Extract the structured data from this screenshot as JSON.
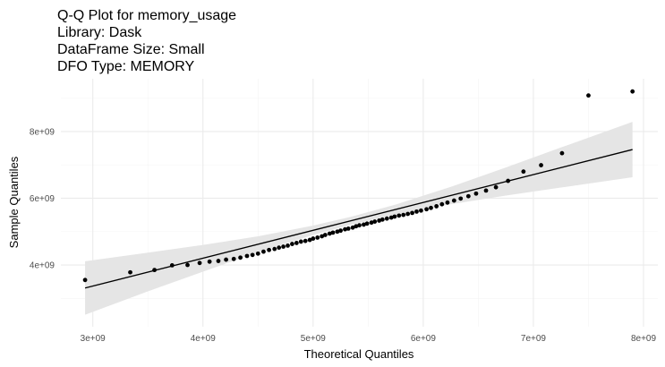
{
  "chart_data": {
    "type": "scatter",
    "title": [
      "Q-Q Plot for memory_usage",
      "Library: Dask",
      "DataFrame Size: Small",
      "DFO Type: MEMORY"
    ],
    "x_label": "Theoretical Quantiles",
    "y_label": "Sample Quantiles",
    "xlim": [
      2710000000.0,
      8130000000.0
    ],
    "ylim": [
      2150000000.0,
      9580000000.0
    ],
    "xticks": [
      {
        "value": 3000000000.0,
        "label": "3e+09"
      },
      {
        "value": 4000000000.0,
        "label": "4e+09"
      },
      {
        "value": 5000000000.0,
        "label": "5e+09"
      },
      {
        "value": 6000000000.0,
        "label": "6e+09"
      },
      {
        "value": 7000000000.0,
        "label": "7e+09"
      },
      {
        "value": 8000000000.0,
        "label": "8e+09"
      }
    ],
    "yticks": [
      {
        "value": 4000000000.0,
        "label": "4e+09"
      },
      {
        "value": 6000000000.0,
        "label": "6e+09"
      },
      {
        "value": 8000000000.0,
        "label": "8e+09"
      }
    ],
    "grid": true,
    "color": "#000000",
    "x": [
      2930000000.0,
      3340000000.0,
      3560000000.0,
      3720000000.0,
      3860000000.0,
      3970000000.0,
      4060000000.0,
      4140000000.0,
      4210000000.0,
      4280000000.0,
      4340000000.0,
      4400000000.0,
      4450000000.0,
      4500000000.0,
      4550000000.0,
      4600000000.0,
      4650000000.0,
      4690000000.0,
      4730000000.0,
      4770000000.0,
      4810000000.0,
      4850000000.0,
      4890000000.0,
      4930000000.0,
      4970000000.0,
      5000000000.0,
      5040000000.0,
      5080000000.0,
      5110000000.0,
      5150000000.0,
      5180000000.0,
      5220000000.0,
      5250000000.0,
      5290000000.0,
      5320000000.0,
      5360000000.0,
      5390000000.0,
      5420000000.0,
      5460000000.0,
      5490000000.0,
      5530000000.0,
      5560000000.0,
      5600000000.0,
      5630000000.0,
      5670000000.0,
      5710000000.0,
      5740000000.0,
      5780000000.0,
      5820000000.0,
      5860000000.0,
      5900000000.0,
      5940000000.0,
      5980000000.0,
      6030000000.0,
      6070000000.0,
      6120000000.0,
      6170000000.0,
      6220000000.0,
      6280000000.0,
      6340000000.0,
      6410000000.0,
      6480000000.0,
      6570000000.0,
      6660000000.0,
      6770000000.0,
      6910000000.0,
      7070000000.0,
      7260000000.0,
      7500000000.0,
      7900000000.0
    ],
    "values": [
      3550000000.0,
      3780000000.0,
      3850000000.0,
      3990000000.0,
      4000000000.0,
      4060000000.0,
      4100000000.0,
      4120000000.0,
      4160000000.0,
      4180000000.0,
      4220000000.0,
      4270000000.0,
      4300000000.0,
      4340000000.0,
      4400000000.0,
      4450000000.0,
      4480000000.0,
      4520000000.0,
      4550000000.0,
      4580000000.0,
      4630000000.0,
      4660000000.0,
      4700000000.0,
      4720000000.0,
      4750000000.0,
      4790000000.0,
      4820000000.0,
      4860000000.0,
      4900000000.0,
      4940000000.0,
      4970000000.0,
      5000000000.0,
      5030000000.0,
      5070000000.0,
      5090000000.0,
      5120000000.0,
      5160000000.0,
      5190000000.0,
      5210000000.0,
      5240000000.0,
      5270000000.0,
      5300000000.0,
      5330000000.0,
      5360000000.0,
      5390000000.0,
      5420000000.0,
      5450000000.0,
      5480000000.0,
      5500000000.0,
      5530000000.0,
      5560000000.0,
      5600000000.0,
      5630000000.0,
      5670000000.0,
      5710000000.0,
      5760000000.0,
      5820000000.0,
      5870000000.0,
      5930000000.0,
      5990000000.0,
      6060000000.0,
      6140000000.0,
      6230000000.0,
      6330000000.0,
      6520000000.0,
      6800000000.0,
      6990000000.0,
      7350000000.0,
      9080000000.0,
      9200000000.0
    ],
    "fit_line": {
      "x": [
        2930000000.0,
        7900000000.0
      ],
      "y": [
        3310000000.0,
        7460000000.0
      ],
      "color": "#000000"
    },
    "band": {
      "x": [
        2930000000.0,
        3500000000.0,
        4000000000.0,
        4500000000.0,
        5000000000.0,
        5350000000.0,
        5750000000.0,
        6250000000.0,
        6750000000.0,
        7250000000.0,
        7900000000.0
      ],
      "lower": [
        2510000000.0,
        3210000000.0,
        3800000000.0,
        4380000000.0,
        4900000000.0,
        5210000000.0,
        5510000000.0,
        5820000000.0,
        6080000000.0,
        6320000000.0,
        6630000000.0
      ],
      "upper": [
        4110000000.0,
        4370000000.0,
        4600000000.0,
        4860000000.0,
        5180000000.0,
        5450000000.0,
        5810000000.0,
        6340000000.0,
        6920000000.0,
        7520000000.0,
        8290000000.0
      ],
      "color": "#e5e5e5"
    }
  }
}
